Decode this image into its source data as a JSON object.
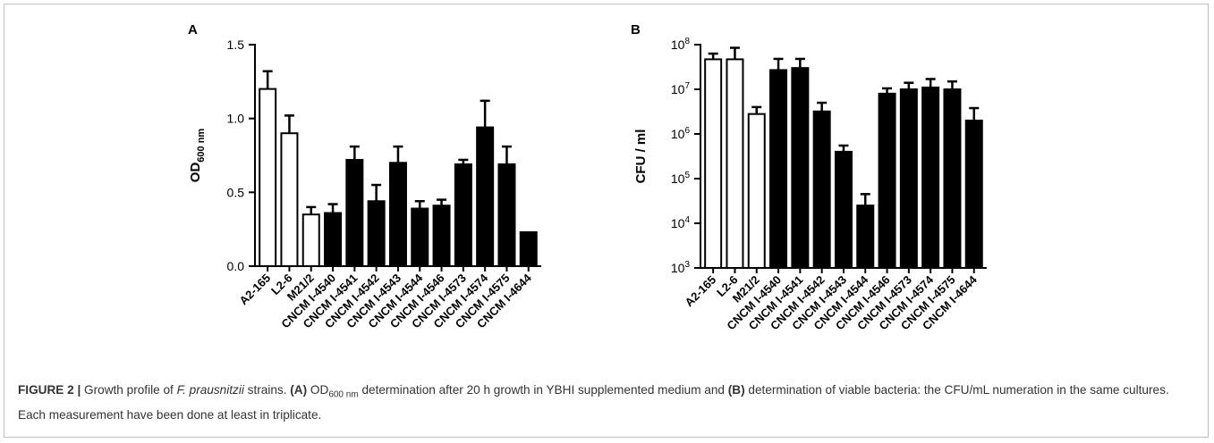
{
  "chart_data": [
    {
      "type": "bar",
      "panel_label": "A",
      "ylabel_main": "OD",
      "ylabel_sub": "600 nm",
      "ylim": [
        0,
        1.5
      ],
      "y_ticks": [
        "0.0",
        "0.5",
        "1.0",
        "1.5"
      ],
      "y_tick_values": [
        0,
        0.5,
        1.0,
        1.5
      ],
      "categories": [
        "A2-165",
        "L2-6",
        "M21/2",
        "CNCM I-4540",
        "CNCM I-4541",
        "CNCM I-4542",
        "CNCM I-4543",
        "CNCM I-4544",
        "CNCM I-4546",
        "CNCM I-4573",
        "CNCM I-4574",
        "CNCM I-4575",
        "CNCM I-4644"
      ],
      "values": [
        1.2,
        0.9,
        0.35,
        0.36,
        0.72,
        0.44,
        0.7,
        0.39,
        0.41,
        0.69,
        0.94,
        0.69,
        0.23
      ],
      "errors": [
        0.12,
        0.12,
        0.05,
        0.06,
        0.09,
        0.11,
        0.11,
        0.05,
        0.04,
        0.03,
        0.18,
        0.12,
        0.0
      ],
      "open_bars": [
        true,
        true,
        true,
        false,
        false,
        false,
        false,
        false,
        false,
        false,
        false,
        false,
        false
      ],
      "grid": false,
      "legend": "none"
    },
    {
      "type": "bar",
      "panel_label": "B",
      "ylabel": "CFU / ml",
      "yscale": "log",
      "ylim": [
        1000,
        100000000
      ],
      "y_tick_values": [
        1000,
        10000,
        100000,
        1000000,
        10000000,
        100000000
      ],
      "y_tick_base": "10",
      "y_tick_exps": [
        "3",
        "4",
        "5",
        "6",
        "7",
        "8"
      ],
      "categories": [
        "A2-165",
        "L2-6",
        "M21/2",
        "CNCM I-4540",
        "CNCM I-4541",
        "CNCM I-4542",
        "CNCM I-4543",
        "CNCM I-4544",
        "CNCM I-4546",
        "CNCM I-4573",
        "CNCM I-4574",
        "CNCM I-4575",
        "CNCM I-4644"
      ],
      "values": [
        47000000,
        47000000,
        2800000,
        27000000,
        30000000,
        3200000,
        400000,
        25000,
        8000000,
        10000000,
        11000000,
        10000000,
        2000000
      ],
      "error_upper": [
        63000000,
        85000000,
        4000000,
        48000000,
        48000000,
        5000000,
        550000,
        45000,
        10500000,
        14000000,
        17000000,
        15000000,
        3800000
      ],
      "open_bars": [
        true,
        true,
        true,
        false,
        false,
        false,
        false,
        false,
        false,
        false,
        false,
        false,
        false
      ],
      "grid": false,
      "legend": "none"
    }
  ],
  "caption": {
    "lead": "FIGURE 2 |",
    "t1": " Growth profile of ",
    "species": "F. prausnitzii",
    "t2": " strains. ",
    "labelA": "(A)",
    "t3a": " OD",
    "t3sub": "600 nm",
    "t3b": " determination after 20 h growth in YBHI supplemented medium and ",
    "labelB": "(B)",
    "t4": " determination of viable bacteria: the CFU/mL numeration in the same cultures. Each measurement have been done at least in triplicate."
  }
}
